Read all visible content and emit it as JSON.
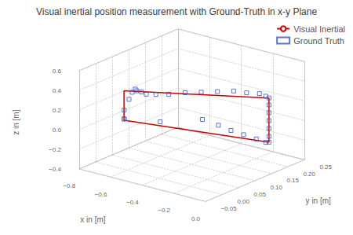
{
  "chart_data": {
    "type": "3d",
    "title": "Visual inertial position measurement with Ground-Truth in x-y Plane",
    "xlabel": "x in [m]",
    "ylabel": "y in [m]",
    "zlabel": "z in [m]",
    "xlim": [
      -0.8,
      0.0
    ],
    "ylim": [
      -0.05,
      0.25
    ],
    "zlim": [
      -0.4,
      0.6
    ],
    "xticks": [
      {
        "value": -0.8,
        "label": "−0.8"
      },
      {
        "value": -0.6,
        "label": "−0.6"
      },
      {
        "value": -0.4,
        "label": "−0.4"
      },
      {
        "value": -0.2,
        "label": "−0.2"
      },
      {
        "value": 0.0,
        "label": "0.0"
      }
    ],
    "yticks": [
      {
        "value": -0.05,
        "label": "−0.05"
      },
      {
        "value": 0.0,
        "label": "0.00"
      },
      0.05,
      {
        "value": 0.1,
        "label": "0.10"
      },
      0.15,
      {
        "value": 0.2,
        "label": "0.20"
      },
      0.25
    ],
    "zticks": [
      {
        "value": -0.4,
        "label": "−0.4"
      },
      {
        "value": -0.2,
        "label": "−0.2"
      },
      {
        "value": 0.0,
        "label": "0.0"
      },
      0.2,
      0.4,
      0.6
    ],
    "grid": true,
    "legend": "upper right",
    "series": [
      {
        "name": "Visual Inertial",
        "type": "line",
        "color": "#cc0000",
        "x": [
          -0.62,
          -0.62,
          -0.12,
          -0.12,
          -0.62
        ],
        "y": [
          0.0,
          0.0,
          0.2,
          0.2,
          0.0
        ],
        "z": [
          0.1,
          0.4,
          0.25,
          -0.2,
          0.1
        ]
      },
      {
        "name": "Ground Truth",
        "type": "scatter",
        "marker": "square",
        "color": "#3355bb",
        "x": [
          -0.64,
          -0.64,
          -0.63,
          -0.61,
          -0.59,
          -0.56,
          -0.53,
          -0.5,
          -0.46,
          -0.42,
          -0.38,
          -0.34,
          -0.3,
          -0.26,
          -0.22,
          -0.18,
          -0.14,
          -0.12,
          -0.12,
          -0.12,
          -0.12,
          -0.12,
          -0.12,
          -0.12,
          -0.14,
          -0.2,
          -0.28,
          -0.36,
          -0.44,
          -0.52,
          -0.6,
          -0.64
        ],
        "y": [
          0.01,
          0.01,
          0.02,
          0.02,
          0.02,
          0.01,
          0.01,
          0.01,
          0.02,
          0.04,
          0.07,
          0.1,
          0.13,
          0.16,
          0.18,
          0.2,
          0.2,
          0.2,
          0.2,
          0.2,
          0.2,
          0.2,
          0.2,
          0.2,
          0.2,
          0.2,
          0.2,
          0.2,
          0.2,
          0.19,
          0.1,
          0.01
        ],
        "z": [
          0.09,
          0.18,
          0.28,
          0.36,
          0.4,
          0.41,
          0.41,
          0.4,
          0.4,
          0.39,
          0.38,
          0.36,
          0.34,
          0.32,
          0.29,
          0.27,
          0.26,
          0.25,
          0.18,
          0.1,
          0.02,
          -0.06,
          -0.14,
          -0.2,
          -0.21,
          -0.2,
          -0.19,
          -0.18,
          -0.16,
          -0.12,
          -0.05,
          0.09
        ]
      }
    ]
  }
}
